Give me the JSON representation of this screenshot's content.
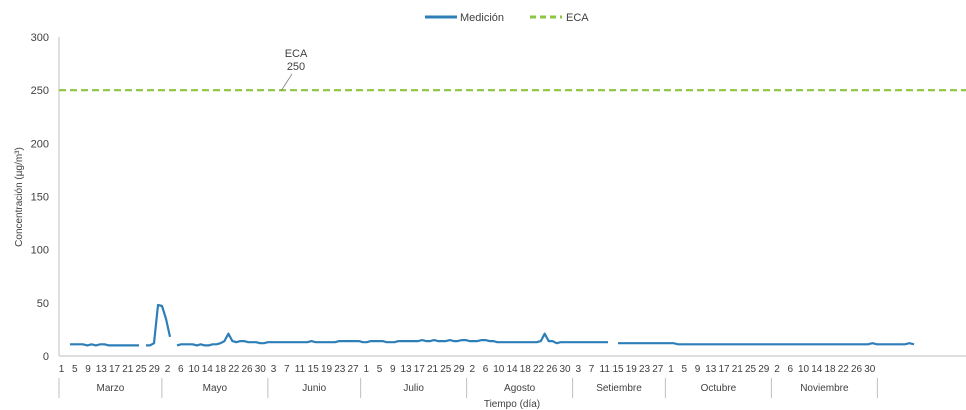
{
  "chart_data": {
    "type": "line",
    "title": "",
    "xlabel": "Tiempo (día)",
    "ylabel": "Concentración (µg/m³)",
    "ylim": [
      0,
      300
    ],
    "yticks": [
      "0",
      "50",
      "100",
      "150",
      "200",
      "250",
      "300"
    ],
    "grid": false,
    "legend_position": "top-center",
    "colors": {
      "medicion": "#2e7fb8",
      "eca": "#8dc63f",
      "axis": "#bfbfbf",
      "text": "#404040"
    },
    "months": [
      {
        "label": "Marzo",
        "days": [
          "1",
          "5",
          "9",
          "13",
          "17",
          "21",
          "25",
          "29"
        ]
      },
      {
        "label": "Mayo",
        "days": [
          "2",
          "6",
          "10",
          "14",
          "18",
          "22",
          "26",
          "30"
        ]
      },
      {
        "label": "Junio",
        "days": [
          "3",
          "7",
          "11",
          "15",
          "19",
          "23",
          "27"
        ]
      },
      {
        "label": "Julio",
        "days": [
          "1",
          "5",
          "9",
          "13",
          "17",
          "21",
          "25",
          "29"
        ]
      },
      {
        "label": "Agosto",
        "days": [
          "2",
          "6",
          "10",
          "14",
          "18",
          "22",
          "26",
          "30"
        ]
      },
      {
        "label": "Setiembre",
        "days": [
          "3",
          "7",
          "11",
          "15",
          "19",
          "23",
          "27"
        ]
      },
      {
        "label": "Octubre",
        "days": [
          "1",
          "5",
          "9",
          "13",
          "17",
          "21",
          "25",
          "29"
        ]
      },
      {
        "label": "Noviembre",
        "days": [
          "2",
          "6",
          "10",
          "14",
          "18",
          "22",
          "26",
          "30"
        ]
      }
    ],
    "series": [
      {
        "name": "Medición",
        "segments": [
          [
            11,
            11,
            11,
            11,
            10,
            11,
            10,
            11,
            11,
            10,
            10,
            10,
            10,
            10,
            10,
            10,
            10
          ],
          [
            10,
            10,
            12,
            48,
            47,
            35,
            18
          ],
          [
            10,
            11,
            11,
            11,
            11,
            10,
            11,
            10,
            10,
            11,
            11,
            12,
            14,
            21,
            14,
            13,
            14,
            14,
            13,
            13,
            13,
            12,
            12,
            13,
            13,
            13,
            13,
            13,
            13,
            13,
            13,
            13,
            13,
            13,
            14,
            13,
            13,
            13,
            13,
            13,
            13,
            14,
            14,
            14,
            14,
            14,
            14,
            13,
            13,
            14,
            14,
            14,
            14,
            13,
            13,
            13,
            14,
            14,
            14,
            14,
            14,
            14,
            15,
            14,
            14,
            15,
            14,
            14,
            14,
            15,
            14,
            14,
            15,
            15,
            14,
            14,
            14,
            15,
            15,
            14,
            14,
            13,
            13,
            13,
            13,
            13,
            13,
            13,
            13,
            13,
            13,
            13,
            14,
            21,
            14,
            14,
            12,
            13,
            13,
            13,
            13,
            13,
            13,
            13,
            13,
            13,
            13,
            13,
            13,
            13
          ],
          [
            12,
            12,
            12,
            12,
            12,
            12,
            12,
            12,
            12,
            12,
            12,
            12,
            12,
            11,
            11,
            11,
            11,
            11,
            11,
            11,
            11,
            11,
            11,
            11,
            11,
            11,
            11,
            11,
            11,
            11,
            11,
            11,
            11,
            11,
            11,
            11,
            11,
            11,
            11,
            11,
            11,
            11,
            11,
            11,
            11,
            11,
            11,
            11,
            11,
            11,
            11,
            11,
            11,
            11,
            11,
            12,
            11,
            11,
            11,
            11,
            11,
            11,
            11,
            12,
            11
          ]
        ]
      },
      {
        "name": "ECA",
        "values": [
          250
        ]
      }
    ],
    "annotations": [
      {
        "text": "ECA",
        "value": "250"
      }
    ]
  }
}
